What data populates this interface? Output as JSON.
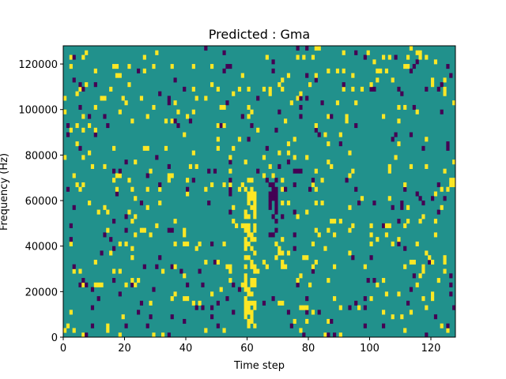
{
  "chart_data": {
    "type": "heatmap",
    "title": "Predicted : Gma",
    "xlabel": "Time step",
    "ylabel": "Frequency (Hz)",
    "xlim": [
      0,
      128
    ],
    "ylim": [
      0,
      128000
    ],
    "x_ticks": [
      0,
      20,
      40,
      60,
      80,
      100,
      120
    ],
    "y_ticks": [
      0,
      20000,
      40000,
      60000,
      80000,
      100000,
      120000
    ],
    "y_tick_labels": [
      "0",
      "20000",
      "40000",
      "60000",
      "80000",
      "100000",
      "120000"
    ],
    "colors": {
      "background": "#21918c",
      "high": "#fde725",
      "low": "#440154"
    },
    "n_time_steps": 128,
    "n_freq_bins": 64,
    "freq_bin_width": 2000,
    "seed": 20240611,
    "cell_density": 0.07,
    "high_fraction": 0.62,
    "bright_band": {
      "time_steps": [
        59,
        60,
        61,
        62
      ],
      "freq_range": [
        4000,
        70000
      ]
    },
    "dark_band": {
      "time_steps": [
        67,
        68,
        69
      ],
      "freq_range": [
        44000,
        70000
      ]
    }
  }
}
